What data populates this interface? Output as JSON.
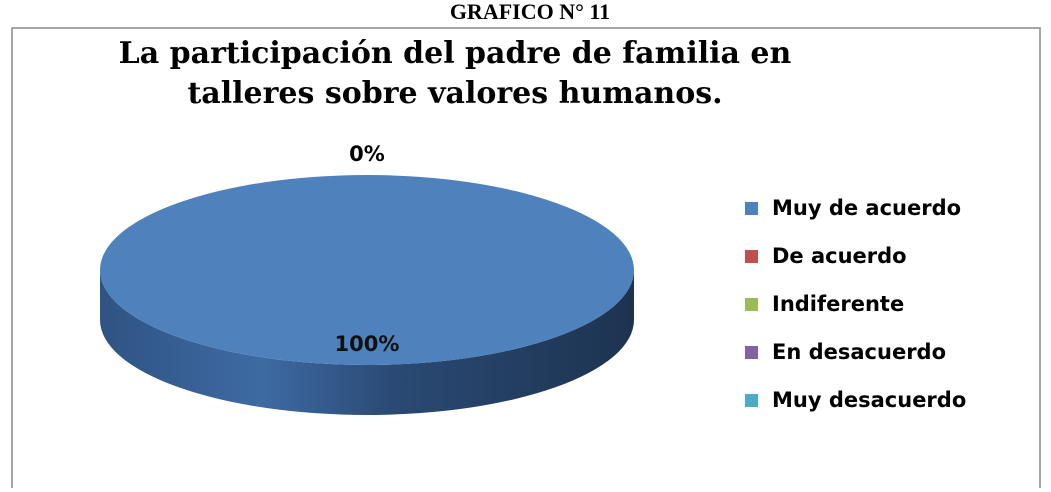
{
  "chart_data": {
    "type": "pie",
    "heading": "GRAFICO N° 11",
    "title": "La participación del padre de familia en talleres sobre valores humanos.",
    "categories": [
      "Muy de acuerdo",
      "De acuerdo",
      "Indiferente",
      "En desacuerdo",
      "Muy desacuerdo"
    ],
    "values": [
      100,
      0,
      0,
      0,
      0
    ],
    "value_labels": [
      "100%",
      "0%",
      null,
      null,
      null
    ],
    "colors": [
      "#4f81bd",
      "#c0504d",
      "#9bbb59",
      "#8064a2",
      "#4bacc6"
    ],
    "legend": "right"
  }
}
